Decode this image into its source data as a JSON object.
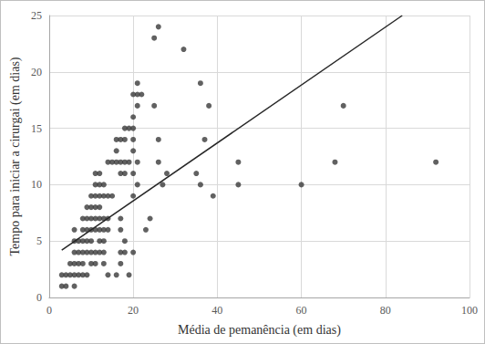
{
  "chart_data": {
    "type": "scatter",
    "x_label": "Média de pemanência (em dias)",
    "y_label": "Tempo para iniciar a cirurgai (em dias)",
    "xlim": [
      0,
      100
    ],
    "xticks": [
      0,
      20,
      40,
      60,
      80,
      100
    ],
    "ylim": [
      0,
      25
    ],
    "yticks": [
      0,
      5,
      10,
      15,
      20,
      25
    ],
    "grid": true,
    "series": [
      {
        "type": "scatter",
        "color": "#3a3a3a",
        "marker": "circle",
        "x": [
          3,
          4,
          3,
          4,
          5,
          6,
          7,
          8,
          9,
          5,
          6,
          7,
          8,
          6,
          7,
          8,
          9,
          6,
          7,
          8,
          9,
          6,
          6,
          8,
          9,
          10,
          11,
          12,
          8,
          9,
          10,
          11,
          12,
          13,
          9,
          10,
          11,
          12,
          10,
          11,
          12,
          13,
          11,
          12,
          13,
          11,
          12,
          10,
          11,
          10,
          11,
          12,
          10,
          12,
          13,
          13,
          14,
          14,
          15,
          16,
          16,
          17,
          16,
          18,
          17,
          18,
          17,
          18,
          19,
          18,
          19,
          20,
          20,
          20,
          20,
          21,
          22,
          21,
          21,
          20,
          21,
          20,
          21,
          20,
          16,
          17,
          17,
          18,
          19,
          20,
          17,
          17,
          18,
          14,
          14,
          15,
          13,
          13,
          14,
          23,
          24,
          25,
          26,
          25,
          26,
          26,
          27,
          28,
          32,
          35,
          36,
          36,
          37,
          38,
          39,
          45,
          45,
          60,
          68,
          70,
          92
        ],
        "values": [
          1,
          1,
          2,
          2,
          2,
          2,
          2,
          2,
          2,
          3,
          3,
          3,
          3,
          4,
          4,
          4,
          4,
          5,
          5,
          5,
          5,
          1,
          6,
          6,
          6,
          6,
          6,
          6,
          7,
          7,
          7,
          7,
          7,
          7,
          8,
          8,
          8,
          8,
          9,
          9,
          9,
          9,
          10,
          10,
          10,
          11,
          11,
          3,
          3,
          4,
          4,
          4,
          5,
          5,
          5,
          6,
          6,
          12,
          12,
          12,
          13,
          14,
          14,
          14,
          12,
          12,
          11,
          11,
          12,
          15,
          15,
          15,
          14,
          16,
          18,
          18,
          18,
          19,
          17,
          13,
          12,
          11,
          10,
          9,
          2,
          3,
          4,
          4,
          2,
          4,
          7,
          6,
          5,
          7,
          9,
          9,
          4,
          3,
          2,
          6,
          7,
          23,
          24,
          17,
          14,
          12,
          10,
          11,
          22,
          11,
          10,
          19,
          14,
          17,
          9,
          12,
          10,
          10,
          12,
          17,
          12
        ]
      },
      {
        "type": "line",
        "color": "#262626",
        "line_style": "solid",
        "x": [
          3,
          84
        ],
        "values": [
          4.2,
          25
        ]
      }
    ]
  }
}
